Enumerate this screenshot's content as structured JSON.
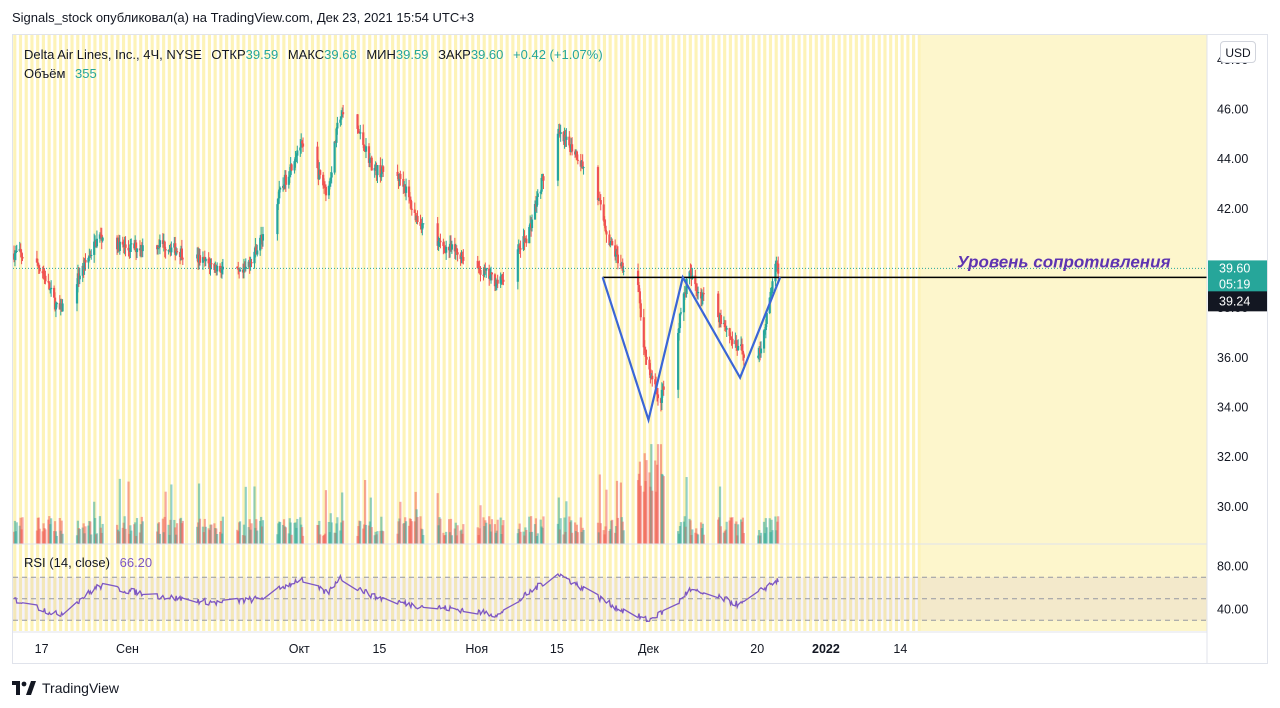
{
  "publisher": "Signals_stock опубликовал(а) на TradingView.com, Дек 23, 2021 15:54 UTC+3",
  "legend": {
    "symbol": "Delta Air Lines, Inc., 4Ч, NYSE",
    "open_label": "ОТКР",
    "open": "39.59",
    "high_label": "МАКС",
    "high": "39.68",
    "low_label": "МИН",
    "low": "39.59",
    "close_label": "ЗАКР",
    "close": "39.60",
    "change": "+0.42 (+1.07%)",
    "volume_label": "Объём",
    "volume": "355"
  },
  "rsi_legend": {
    "label": "RSI (14, close)",
    "value": "66.20"
  },
  "currency_button": "USD",
  "footer": {
    "brand": "TradingView"
  },
  "colors": {
    "up": "#26a69a",
    "down": "#ef5350",
    "session_band": "#fdf3b8",
    "rsi": "#7e57c2",
    "pattern": "#3a66d6",
    "annotation": "#5e35b1"
  },
  "chart_data": [
    {
      "type": "candlestick",
      "title": "Delta Air Lines, Inc., 4Ч, NYSE",
      "ylim": [
        28.5,
        49.0
      ],
      "y_ticks": [
        "48.00",
        "46.00",
        "44.00",
        "42.00",
        "40.00",
        "38.00",
        "36.00",
        "34.00",
        "32.00",
        "30.00"
      ],
      "x_ticks": [
        "17",
        "Сен",
        "Окт",
        "15",
        "Ноя",
        "15",
        "Дек",
        "20",
        "2022",
        "14"
      ],
      "price_labels": {
        "last": "39.60",
        "countdown": "05:19",
        "level": "39.24"
      },
      "annotation": "Уровень сопротивления",
      "resistance_level": 39.24,
      "pattern_points": [
        {
          "date": "2021-11-23",
          "price": 39.24
        },
        {
          "date": "2021-12-01",
          "price": 33.5
        },
        {
          "date": "2021-12-07",
          "price": 39.24
        },
        {
          "date": "2021-12-17",
          "price": 35.2
        },
        {
          "date": "2021-12-24",
          "price": 39.24
        }
      ],
      "anchors": [
        {
          "date": "2021-08-13",
          "price": 40.2
        },
        {
          "date": "2021-08-17",
          "price": 39.6
        },
        {
          "date": "2021-08-20",
          "price": 37.8
        },
        {
          "date": "2021-08-24",
          "price": 39.5
        },
        {
          "date": "2021-08-27",
          "price": 40.9
        },
        {
          "date": "2021-09-01",
          "price": 40.4
        },
        {
          "date": "2021-09-07",
          "price": 40.6
        },
        {
          "date": "2021-09-13",
          "price": 40.0
        },
        {
          "date": "2021-09-17",
          "price": 39.6
        },
        {
          "date": "2021-09-21",
          "price": 39.3
        },
        {
          "date": "2021-09-24",
          "price": 40.6
        },
        {
          "date": "2021-09-29",
          "price": 43.4
        },
        {
          "date": "2021-10-01",
          "price": 44.6
        },
        {
          "date": "2021-10-04",
          "price": 43.6
        },
        {
          "date": "2021-10-06",
          "price": 42.6
        },
        {
          "date": "2021-10-08",
          "price": 45.8
        },
        {
          "date": "2021-10-11",
          "price": 45.3
        },
        {
          "date": "2021-10-14",
          "price": 43.6
        },
        {
          "date": "2021-10-19",
          "price": 43.2
        },
        {
          "date": "2021-10-21",
          "price": 41.8
        },
        {
          "date": "2021-10-25",
          "price": 40.6
        },
        {
          "date": "2021-10-29",
          "price": 40.2
        },
        {
          "date": "2021-11-03",
          "price": 39.3
        },
        {
          "date": "2021-11-05",
          "price": 39.0
        },
        {
          "date": "2021-11-08",
          "price": 40.2
        },
        {
          "date": "2021-11-10",
          "price": 41.0
        },
        {
          "date": "2021-11-12",
          "price": 42.8
        },
        {
          "date": "2021-11-15",
          "price": 45.0
        },
        {
          "date": "2021-11-18",
          "price": 44.4
        },
        {
          "date": "2021-11-22",
          "price": 42.6
        },
        {
          "date": "2021-11-24",
          "price": 40.8
        },
        {
          "date": "2021-11-26",
          "price": 39.8
        },
        {
          "date": "2021-11-29",
          "price": 39.5
        },
        {
          "date": "2021-11-30",
          "price": 36.6
        },
        {
          "date": "2021-12-01",
          "price": 35.6
        },
        {
          "date": "2021-12-03",
          "price": 34.2
        },
        {
          "date": "2021-12-06",
          "price": 37.0
        },
        {
          "date": "2021-12-08",
          "price": 39.4
        },
        {
          "date": "2021-12-10",
          "price": 38.6
        },
        {
          "date": "2021-12-14",
          "price": 37.5
        },
        {
          "date": "2021-12-16",
          "price": 36.5
        },
        {
          "date": "2021-12-20",
          "price": 35.8
        },
        {
          "date": "2021-12-22",
          "price": 38.0
        },
        {
          "date": "2021-12-23",
          "price": 39.6
        }
      ],
      "volume": {
        "series": "Объём",
        "last": 355
      }
    },
    {
      "type": "line",
      "title": "RSI (14, close)",
      "ylim": [
        20,
        100
      ],
      "y_ticks": [
        "80.00",
        "40.00"
      ],
      "bands": [
        70,
        30
      ],
      "series": [
        {
          "name": "RSI (14, close)",
          "values": [
            {
              "date": "2021-08-13",
              "value": 48
            },
            {
              "date": "2021-08-20",
              "value": 35
            },
            {
              "date": "2021-08-27",
              "value": 62
            },
            {
              "date": "2021-09-07",
              "value": 52
            },
            {
              "date": "2021-09-17",
              "value": 46
            },
            {
              "date": "2021-09-24",
              "value": 50
            },
            {
              "date": "2021-10-01",
              "value": 68
            },
            {
              "date": "2021-10-06",
              "value": 55
            },
            {
              "date": "2021-10-08",
              "value": 70
            },
            {
              "date": "2021-10-14",
              "value": 52
            },
            {
              "date": "2021-10-21",
              "value": 44
            },
            {
              "date": "2021-10-29",
              "value": 40
            },
            {
              "date": "2021-11-05",
              "value": 35
            },
            {
              "date": "2021-11-10",
              "value": 55
            },
            {
              "date": "2021-11-15",
              "value": 74
            },
            {
              "date": "2021-11-22",
              "value": 52
            },
            {
              "date": "2021-11-26",
              "value": 40
            },
            {
              "date": "2021-12-01",
              "value": 30
            },
            {
              "date": "2021-12-06",
              "value": 45
            },
            {
              "date": "2021-12-08",
              "value": 58
            },
            {
              "date": "2021-12-14",
              "value": 50
            },
            {
              "date": "2021-12-17",
              "value": 44
            },
            {
              "date": "2021-12-23",
              "value": 66.2
            }
          ]
        }
      ]
    }
  ]
}
